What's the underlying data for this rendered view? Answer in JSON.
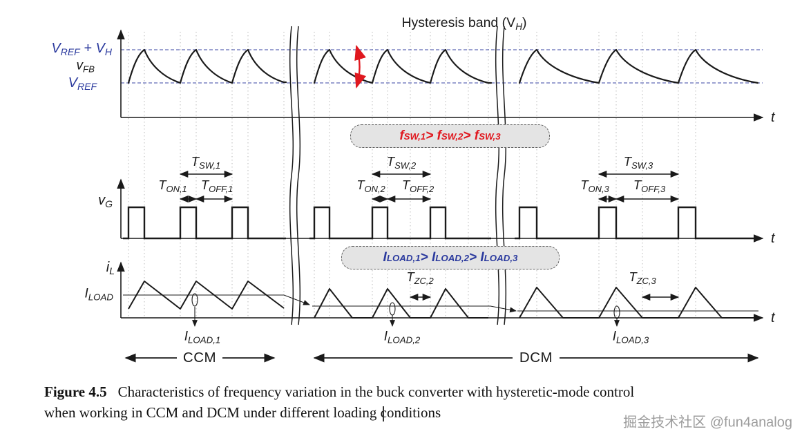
{
  "palette": {
    "ink": "#1a1a1a",
    "blue": "#2b3a9e",
    "red": "#e0181f",
    "grid": "#b9b9b9",
    "box_fill": "#e4e4e4",
    "box_border": "#5f5f5f",
    "watermark": "#9c9c9c"
  },
  "top_plot": {
    "title": "Hysteresis band (V_{H})",
    "label_vref_vh": "V_{REF} + V_{H}",
    "label_vfb": "v_{FB}",
    "label_vref": "V_{REF}",
    "t": "t"
  },
  "gate_plot": {
    "label_vg": "v_{G}",
    "t": "t",
    "callout": "f_{SW,1} > f_{SW,2} > f_{SW,3}",
    "tsw1": "T_{SW,1}",
    "ton1": "T_{ON,1}",
    "toff1": "T_{OFF,1}",
    "tsw2": "T_{SW,2}",
    "ton2": "T_{ON,2}",
    "toff2": "T_{OFF,2}",
    "tsw3": "T_{SW,3}",
    "ton3": "T_{ON,3}",
    "toff3": "T_{OFF,3}"
  },
  "current_plot": {
    "label_il": "i_{L}",
    "label_iload": "I_{LOAD}",
    "t": "t",
    "callout": "I_{LOAD,1} > I_{LOAD,2} > I_{LOAD,3}",
    "tzc2": "T_{ZC,2}",
    "tzc3": "T_{ZC,3}",
    "iload1": "I_{LOAD,1}",
    "iload2": "I_{LOAD,2}",
    "iload3": "I_{LOAD,3}"
  },
  "regions": {
    "ccm": "CCM",
    "dcm": "DCM"
  },
  "caption": {
    "tag": "Figure 4.5",
    "line1": "Characteristics of frequency variation in the buck converter with hysteretic-mode control",
    "line2": "when working in CCM and DCM under different loading conditions"
  },
  "watermark": "掘金技术社区 @fun4analog"
}
